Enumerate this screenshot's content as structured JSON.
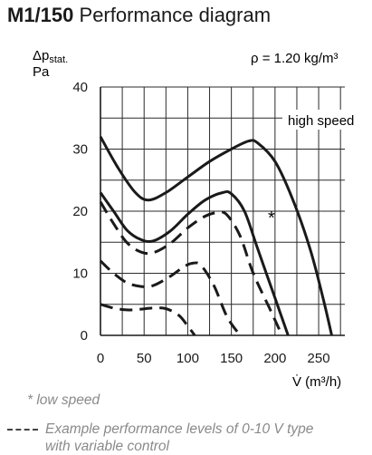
{
  "title": {
    "model": "M1/150",
    "text": "Performance diagram"
  },
  "chart_data": {
    "type": "line",
    "ylabel_main": "Δp",
    "ylabel_sub": "stat.",
    "ylabel_unit": "Pa",
    "xlabel": "V̇ (m³/h)",
    "xlim": [
      0,
      280
    ],
    "ylim": [
      0,
      40
    ],
    "x_ticks": [
      0,
      50,
      100,
      150,
      200,
      250
    ],
    "y_ticks": [
      0,
      10,
      20,
      30,
      40
    ],
    "density_note": "ρ = 1.20 kg/m³",
    "annotations": {
      "high_speed": "high speed",
      "low_speed_marker": "*"
    },
    "grid": true,
    "series": [
      {
        "style": "solid",
        "points": [
          [
            0,
            32
          ],
          [
            20,
            27
          ],
          [
            40,
            23
          ],
          [
            55,
            21.8
          ],
          [
            75,
            23
          ],
          [
            100,
            25.5
          ],
          [
            125,
            28
          ],
          [
            150,
            30
          ],
          [
            170,
            31.3
          ],
          [
            180,
            31
          ],
          [
            200,
            28
          ],
          [
            220,
            22
          ],
          [
            240,
            14
          ],
          [
            255,
            6
          ],
          [
            265,
            0
          ]
        ]
      },
      {
        "style": "solid",
        "points": [
          [
            0,
            23
          ],
          [
            15,
            20
          ],
          [
            30,
            17
          ],
          [
            45,
            15.5
          ],
          [
            60,
            15.2
          ],
          [
            80,
            16.8
          ],
          [
            100,
            19.5
          ],
          [
            120,
            21.8
          ],
          [
            140,
            23
          ],
          [
            150,
            22.8
          ],
          [
            165,
            20
          ],
          [
            180,
            14
          ],
          [
            200,
            6
          ],
          [
            215,
            0
          ]
        ]
      },
      {
        "style": "dashed",
        "points": [
          [
            0,
            21.5
          ],
          [
            15,
            18
          ],
          [
            30,
            15
          ],
          [
            45,
            13.5
          ],
          [
            60,
            13.3
          ],
          [
            80,
            14.8
          ],
          [
            100,
            17.3
          ],
          [
            120,
            19.2
          ],
          [
            135,
            19.8
          ],
          [
            145,
            19.4
          ],
          [
            160,
            16
          ],
          [
            175,
            10
          ],
          [
            195,
            4
          ],
          [
            208,
            0
          ]
        ]
      },
      {
        "style": "dashed",
        "points": [
          [
            0,
            12
          ],
          [
            15,
            10
          ],
          [
            30,
            8.5
          ],
          [
            45,
            7.9
          ],
          [
            60,
            8
          ],
          [
            80,
            9.5
          ],
          [
            95,
            11
          ],
          [
            105,
            11.6
          ],
          [
            115,
            11.3
          ],
          [
            130,
            8
          ],
          [
            145,
            3
          ],
          [
            160,
            0
          ]
        ]
      },
      {
        "style": "dashed",
        "points": [
          [
            0,
            5
          ],
          [
            15,
            4.4
          ],
          [
            30,
            4.1
          ],
          [
            45,
            4.2
          ],
          [
            60,
            4.4
          ],
          [
            75,
            4.3
          ],
          [
            90,
            3.2
          ],
          [
            100,
            1.5
          ],
          [
            108,
            0
          ]
        ]
      }
    ]
  },
  "footnote": "* low speed",
  "legend": {
    "dashed_line1": "Example performance levels of 0-10 V type",
    "dashed_line2": "with variable control"
  }
}
